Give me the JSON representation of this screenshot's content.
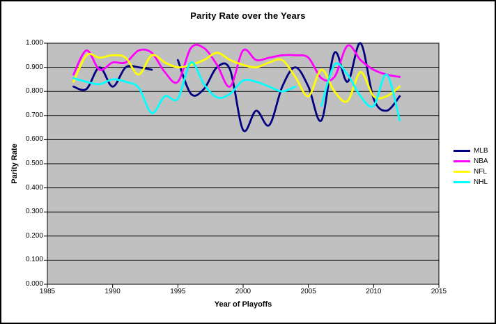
{
  "chart": {
    "title": "Parity Rate over the Years",
    "x_axis": {
      "label": "Year of Playoffs",
      "ticks": [
        "1985",
        "1990",
        "1995",
        "2000",
        "2005",
        "2010",
        "2015"
      ],
      "min": 1985,
      "max": 2015
    },
    "y_axis": {
      "label": "Parity Rate",
      "ticks": [
        "0.000",
        "0.100",
        "0.200",
        "0.300",
        "0.400",
        "0.500",
        "0.600",
        "0.700",
        "0.800",
        "0.900",
        "1.000"
      ],
      "min": 0,
      "max": 1
    },
    "plot_bg_color": "#C0C0C0",
    "gridline_color": "#000000",
    "frame_color": "#000000"
  },
  "legend": {
    "items": [
      {
        "label": "MLB",
        "color": "#000080"
      },
      {
        "label": "NBA",
        "color": "#FF00FF"
      },
      {
        "label": "NFL",
        "color": "#FFFF00"
      },
      {
        "label": "NHL",
        "color": "#00FFFF"
      }
    ]
  },
  "chart_data": {
    "type": "line",
    "title": "Parity Rate over the Years",
    "xlabel": "Year of Playoffs",
    "ylabel": "Parity Rate",
    "xlim": [
      1985,
      2015
    ],
    "ylim": [
      0,
      1
    ],
    "grid": true,
    "legend_position": "right",
    "smoothed": true,
    "x": [
      1987,
      1988,
      1989,
      1990,
      1991,
      1992,
      1993,
      1994,
      1995,
      1996,
      1997,
      1998,
      1999,
      2000,
      2001,
      2002,
      2003,
      2004,
      2005,
      2006,
      2007,
      2008,
      2009,
      2010,
      2011,
      2012
    ],
    "series": [
      {
        "name": "MLB",
        "color": "#000080",
        "values": [
          0.82,
          0.81,
          0.9,
          0.82,
          0.9,
          0.9,
          0.89,
          null,
          0.93,
          0.79,
          0.81,
          0.9,
          0.89,
          0.64,
          0.72,
          0.66,
          0.82,
          0.9,
          0.82,
          0.68,
          0.96,
          0.84,
          1.0,
          0.77,
          0.72,
          0.78
        ]
      },
      {
        "name": "NBA",
        "color": "#FF00FF",
        "values": [
          0.87,
          0.97,
          0.89,
          0.92,
          0.92,
          0.97,
          0.96,
          0.88,
          0.84,
          0.98,
          0.98,
          0.91,
          0.82,
          0.97,
          0.93,
          0.94,
          0.95,
          0.95,
          0.94,
          0.855,
          0.86,
          0.99,
          0.93,
          0.89,
          0.87,
          0.86
        ]
      },
      {
        "name": "NFL",
        "color": "#FFFF00",
        "values": [
          0.84,
          0.95,
          0.94,
          0.95,
          0.94,
          0.87,
          0.95,
          0.92,
          0.9,
          0.91,
          0.93,
          0.96,
          0.93,
          0.91,
          0.9,
          0.92,
          0.93,
          0.86,
          0.78,
          0.89,
          0.8,
          0.76,
          0.88,
          0.78,
          0.78,
          0.82
        ]
      },
      {
        "name": "NHL",
        "color": "#00FFFF",
        "values": [
          0.855,
          0.84,
          0.83,
          0.85,
          0.84,
          0.815,
          0.71,
          0.78,
          0.77,
          0.92,
          0.83,
          0.775,
          0.79,
          0.845,
          0.84,
          0.82,
          0.8,
          0.82,
          null,
          0.74,
          0.91,
          0.87,
          0.78,
          0.74,
          0.87,
          0.68
        ]
      }
    ]
  }
}
